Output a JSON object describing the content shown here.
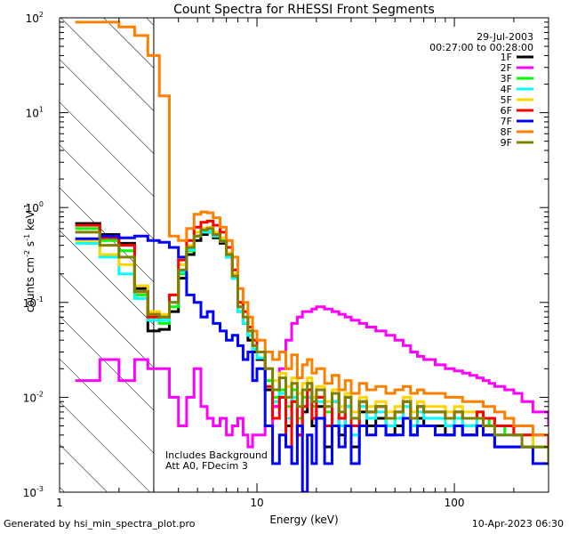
{
  "chart_data": {
    "type": "line",
    "title": "Count Spectra for RHESSI Front Segments",
    "xlabel": "Energy (keV)",
    "ylabel_base": "counts cm",
    "ylabel_exp1": "-2",
    "ylabel_mid": " s",
    "ylabel_exp2": "-1",
    "ylabel_end": " keV",
    "ylabel_exp3": "-1",
    "x_scale": "log",
    "y_scale": "log",
    "xlim": [
      1,
      300
    ],
    "ylim": [
      0.001,
      100
    ],
    "x_ticks": [
      {
        "v": 1,
        "label": "1"
      },
      {
        "v": 10,
        "label": "10"
      },
      {
        "v": 100,
        "label": "100"
      }
    ],
    "y_ticks": [
      {
        "v": 100,
        "b": "10",
        "e": "2"
      },
      {
        "v": 10,
        "b": "10",
        "e": "1"
      },
      {
        "v": 1,
        "b": "10",
        "e": "0"
      },
      {
        "v": 0.1,
        "b": "10",
        "e": "-1"
      },
      {
        "v": 0.01,
        "b": "10",
        "e": "-2"
      },
      {
        "v": 0.001,
        "b": "10",
        "e": "-3"
      }
    ],
    "hatched_region_max_energy": 3,
    "date": "29-Jul-2003",
    "time_range": "00:27:00 to 00:28:00",
    "annotation_line1": "Includes Background",
    "annotation_line2": "Att A0, FDecim 3",
    "energy_bins": [
      1.2,
      1.6,
      2.0,
      2.4,
      2.8,
      3.2,
      3.6,
      4.0,
      4.4,
      4.8,
      5.2,
      5.6,
      6.0,
      6.5,
      7.0,
      7.5,
      8.0,
      8.5,
      9.0,
      9.5,
      10,
      11,
      12,
      13,
      14,
      15,
      16,
      17,
      18,
      19,
      20,
      22,
      24,
      26,
      28,
      30,
      33,
      36,
      40,
      45,
      50,
      55,
      60,
      65,
      70,
      80,
      90,
      100,
      110,
      120,
      130,
      140,
      150,
      160,
      180,
      200,
      220,
      250,
      300
    ],
    "series": [
      {
        "name": "1F",
        "color": "#000000",
        "values": [
          0.68,
          0.52,
          0.42,
          0.14,
          0.05,
          0.052,
          0.08,
          0.18,
          0.32,
          0.45,
          0.52,
          0.55,
          0.48,
          0.42,
          0.3,
          0.18,
          0.08,
          0.06,
          0.04,
          0.03,
          0.025,
          0.012,
          0.008,
          0.01,
          0.005,
          0.009,
          0.004,
          0.007,
          0.01,
          0.005,
          0.008,
          0.003,
          0.009,
          0.004,
          0.008,
          0.003,
          0.007,
          0.005,
          0.006,
          0.004,
          0.005,
          0.006,
          0.004,
          0.006,
          0.005,
          0.005,
          0.004,
          0.005,
          0.004,
          0.004,
          0.005,
          0.004,
          0.004,
          0.003,
          0.003,
          0.003,
          0.003,
          0.003,
          0.003
        ]
      },
      {
        "name": "2F",
        "color": "#ff00ff",
        "values": [
          0.015,
          0.025,
          0.015,
          0.025,
          0.02,
          0.02,
          0.01,
          0.005,
          0.01,
          0.02,
          0.008,
          0.006,
          0.005,
          0.006,
          0.004,
          0.005,
          0.006,
          0.004,
          0.003,
          0.004,
          0.004,
          0.005,
          0.008,
          0.02,
          0.04,
          0.06,
          0.07,
          0.08,
          0.08,
          0.085,
          0.09,
          0.085,
          0.08,
          0.075,
          0.07,
          0.065,
          0.06,
          0.055,
          0.05,
          0.045,
          0.04,
          0.035,
          0.03,
          0.027,
          0.025,
          0.022,
          0.02,
          0.019,
          0.018,
          0.017,
          0.016,
          0.015,
          0.014,
          0.013,
          0.012,
          0.011,
          0.009,
          0.007,
          0.005
        ]
      },
      {
        "name": "3F",
        "color": "#00ff00",
        "values": [
          0.6,
          0.45,
          0.35,
          0.12,
          0.07,
          0.06,
          0.09,
          0.2,
          0.35,
          0.5,
          0.55,
          0.55,
          0.5,
          0.45,
          0.32,
          0.2,
          0.09,
          0.07,
          0.05,
          0.035,
          0.03,
          0.015,
          0.01,
          0.012,
          0.008,
          0.012,
          0.006,
          0.01,
          0.012,
          0.008,
          0.01,
          0.007,
          0.011,
          0.006,
          0.01,
          0.005,
          0.009,
          0.007,
          0.008,
          0.006,
          0.007,
          0.009,
          0.006,
          0.008,
          0.007,
          0.007,
          0.006,
          0.007,
          0.006,
          0.006,
          0.007,
          0.005,
          0.006,
          0.004,
          0.005,
          0.004,
          0.004,
          0.003,
          0.003
        ]
      },
      {
        "name": "4F",
        "color": "#00ffff",
        "values": [
          0.42,
          0.3,
          0.2,
          0.11,
          0.065,
          0.065,
          0.1,
          0.21,
          0.36,
          0.5,
          0.55,
          0.56,
          0.5,
          0.44,
          0.3,
          0.18,
          0.08,
          0.06,
          0.045,
          0.032,
          0.026,
          0.013,
          0.009,
          0.011,
          0.006,
          0.01,
          0.005,
          0.008,
          0.01,
          0.006,
          0.009,
          0.005,
          0.009,
          0.005,
          0.008,
          0.004,
          0.008,
          0.006,
          0.007,
          0.005,
          0.006,
          0.008,
          0.005,
          0.007,
          0.006,
          0.006,
          0.005,
          0.006,
          0.005,
          0.005,
          0.006,
          0.005,
          0.005,
          0.004,
          0.004,
          0.004,
          0.003,
          0.003,
          0.003
        ]
      },
      {
        "name": "5F",
        "color": "#ffd400",
        "values": [
          0.45,
          0.32,
          0.25,
          0.15,
          0.08,
          0.075,
          0.12,
          0.25,
          0.4,
          0.55,
          0.6,
          0.62,
          0.55,
          0.48,
          0.33,
          0.2,
          0.1,
          0.07,
          0.05,
          0.04,
          0.03,
          0.02,
          0.015,
          0.018,
          0.013,
          0.016,
          0.011,
          0.014,
          0.016,
          0.01,
          0.013,
          0.009,
          0.012,
          0.008,
          0.011,
          0.007,
          0.01,
          0.008,
          0.009,
          0.007,
          0.008,
          0.01,
          0.007,
          0.009,
          0.008,
          0.008,
          0.007,
          0.008,
          0.007,
          0.007,
          0.007,
          0.006,
          0.006,
          0.005,
          0.005,
          0.004,
          0.004,
          0.003,
          0.003
        ]
      },
      {
        "name": "6F",
        "color": "#ff0000",
        "values": [
          0.65,
          0.48,
          0.4,
          0.13,
          0.07,
          0.07,
          0.12,
          0.28,
          0.45,
          0.62,
          0.7,
          0.72,
          0.65,
          0.55,
          0.38,
          0.22,
          0.1,
          0.08,
          0.055,
          0.04,
          0.03,
          0.013,
          0.006,
          0.01,
          0.003,
          0.009,
          0.004,
          0.008,
          0.012,
          0.006,
          0.01,
          0.005,
          0.011,
          0.006,
          0.01,
          0.005,
          0.009,
          0.007,
          0.008,
          0.006,
          0.007,
          0.009,
          0.006,
          0.008,
          0.007,
          0.007,
          0.006,
          0.007,
          0.006,
          0.006,
          0.007,
          0.006,
          0.006,
          0.005,
          0.005,
          0.004,
          0.004,
          0.004,
          0.003
        ]
      },
      {
        "name": "7F",
        "color": "#0000ff",
        "values": [
          0.47,
          0.5,
          0.48,
          0.5,
          0.45,
          0.43,
          0.38,
          0.3,
          0.12,
          0.1,
          0.07,
          0.08,
          0.06,
          0.05,
          0.04,
          0.045,
          0.035,
          0.025,
          0.03,
          0.015,
          0.02,
          0.005,
          0.002,
          0.004,
          0.003,
          0.002,
          0.005,
          0.001,
          0.004,
          0.002,
          0.006,
          0.002,
          0.005,
          0.003,
          0.005,
          0.002,
          0.005,
          0.004,
          0.005,
          0.004,
          0.004,
          0.006,
          0.004,
          0.005,
          0.005,
          0.004,
          0.004,
          0.005,
          0.004,
          0.004,
          0.005,
          0.004,
          0.004,
          0.003,
          0.003,
          0.003,
          0.003,
          0.002,
          0.002
        ]
      },
      {
        "name": "8F",
        "color": "#ff8000",
        "values": [
          90,
          90,
          80,
          65,
          40,
          15,
          0.5,
          0.45,
          0.6,
          0.85,
          0.9,
          0.88,
          0.78,
          0.62,
          0.45,
          0.3,
          0.14,
          0.1,
          0.07,
          0.05,
          0.04,
          0.03,
          0.025,
          0.03,
          0.02,
          0.028,
          0.016,
          0.022,
          0.025,
          0.018,
          0.02,
          0.014,
          0.017,
          0.012,
          0.015,
          0.011,
          0.014,
          0.012,
          0.013,
          0.011,
          0.012,
          0.013,
          0.011,
          0.012,
          0.011,
          0.011,
          0.01,
          0.01,
          0.009,
          0.009,
          0.009,
          0.008,
          0.008,
          0.007,
          0.006,
          0.005,
          0.005,
          0.004,
          0.004
        ]
      },
      {
        "name": "9F",
        "color": "#808000",
        "values": [
          0.55,
          0.4,
          0.3,
          0.13,
          0.075,
          0.07,
          0.1,
          0.22,
          0.38,
          0.5,
          0.58,
          0.6,
          0.52,
          0.44,
          0.32,
          0.19,
          0.09,
          0.07,
          0.05,
          0.035,
          0.03,
          0.02,
          0.012,
          0.016,
          0.01,
          0.014,
          0.008,
          0.012,
          0.014,
          0.009,
          0.012,
          0.008,
          0.011,
          0.007,
          0.01,
          0.006,
          0.009,
          0.007,
          0.008,
          0.006,
          0.007,
          0.009,
          0.006,
          0.008,
          0.007,
          0.007,
          0.006,
          0.007,
          0.006,
          0.006,
          0.006,
          0.005,
          0.005,
          0.004,
          0.004,
          0.004,
          0.003,
          0.003,
          0.002
        ]
      }
    ]
  },
  "footer": {
    "generated_by": "Generated by hsi_min_spectra_plot.pro",
    "timestamp": "10-Apr-2023 06:30"
  }
}
